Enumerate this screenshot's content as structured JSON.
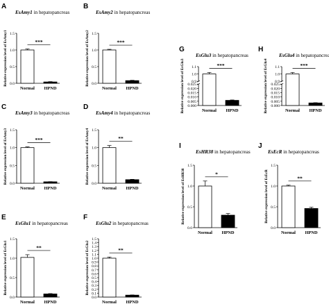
{
  "chart_data": [
    {
      "panel": "A",
      "type": "bar",
      "gene": "EsAmy1",
      "title_suffix": " in hepatopancreas",
      "ylabel": "Relative expression level of EsAmy1",
      "categories": [
        "Normal",
        "HPND"
      ],
      "values": [
        1.0,
        0.04
      ],
      "errors": [
        0.03,
        0.01
      ],
      "ylim": [
        0,
        1.5
      ],
      "yticks": [
        0.0,
        0.5,
        1.0,
        1.5
      ],
      "ytick_labels": [
        "0.0",
        "0.5",
        "1.0",
        "1.5"
      ],
      "significance": "***"
    },
    {
      "panel": "B",
      "type": "bar",
      "gene": "EsAmy2",
      "title_suffix": " in hepatopancreas",
      "ylabel": "Relative expression level of EsAmy2",
      "categories": [
        "Normal",
        "HPND"
      ],
      "values": [
        1.0,
        0.08
      ],
      "errors": [
        0.02,
        0.01
      ],
      "ylim": [
        0,
        1.5
      ],
      "yticks": [
        0.0,
        0.5,
        1.0,
        1.5
      ],
      "ytick_labels": [
        "0.0",
        "0.5",
        "1.0",
        "1.5"
      ],
      "significance": "***"
    },
    {
      "panel": "C",
      "type": "bar",
      "gene": "EsAmy3",
      "title_suffix": " in hepatopancreas",
      "ylabel": "Relative expression level of EsAmy3",
      "categories": [
        "Normal",
        "HPND"
      ],
      "values": [
        1.0,
        0.04
      ],
      "errors": [
        0.02,
        0.005
      ],
      "ylim": [
        0,
        1.5
      ],
      "yticks": [
        0.0,
        0.5,
        1.0,
        1.5
      ],
      "ytick_labels": [
        "0.0",
        "0.5",
        "1.0",
        "1.5"
      ],
      "significance": "***"
    },
    {
      "panel": "D",
      "type": "bar",
      "gene": "EsAmy4",
      "title_suffix": " in hepatopancreas",
      "ylabel": "Relative expression level of EsAmy4",
      "categories": [
        "Normal",
        "HPND"
      ],
      "values": [
        1.0,
        0.1
      ],
      "errors": [
        0.06,
        0.01
      ],
      "ylim": [
        0,
        1.5
      ],
      "yticks": [
        0.0,
        0.5,
        1.0,
        1.5
      ],
      "ytick_labels": [
        "0.0",
        "0.5",
        "1.0",
        "1.5"
      ],
      "significance": "**"
    },
    {
      "panel": "E",
      "type": "bar",
      "gene": "EsGlu1",
      "title_suffix": " in hepatopancreas",
      "ylabel": "Relative expression level of EsGlu1",
      "categories": [
        "Normal",
        "HPND"
      ],
      "values": [
        1.02,
        0.08
      ],
      "errors": [
        0.07,
        0.01
      ],
      "ylim": [
        0,
        1.5
      ],
      "yticks": [
        0.0,
        0.5,
        1.0,
        1.5
      ],
      "ytick_labels": [
        "0.0",
        "0.5",
        "1.0",
        "1.5"
      ],
      "significance": "**"
    },
    {
      "panel": "F",
      "type": "bar",
      "gene": "EsGlu2",
      "title_suffix": " in hepatopancreas",
      "ylabel": "Relative expression level of EsGlu2",
      "categories": [
        "Normal",
        "HPND"
      ],
      "values": [
        1.0,
        0.05
      ],
      "errors": [
        0.03,
        0.005
      ],
      "ylim": [
        0,
        1.5
      ],
      "yticks": [
        0.0,
        0.1,
        0.2,
        0.3,
        0.4,
        0.5,
        0.6,
        0.7,
        0.8,
        0.9,
        1.0,
        1.1,
        1.2,
        1.3,
        1.4,
        1.5
      ],
      "ytick_labels": [
        "0.0",
        "0.1",
        "0.2",
        "0.3",
        "0.4",
        "0.5",
        "0.6",
        "0.7",
        "0.8",
        "0.9",
        "1.0",
        "1.1",
        "1.2",
        "1.3",
        "1.4",
        "1.5"
      ],
      "significance": "**"
    },
    {
      "panel": "G",
      "type": "bar",
      "gene": "EsGlu3",
      "title_suffix": " in hepatopancreas",
      "ylabel": "Relative expression level of EsGlu3",
      "categories": [
        "Normal",
        "HPND"
      ],
      "values": [
        1.0,
        0.006
      ],
      "errors": [
        0.02,
        0.0005
      ],
      "ylim": [
        0,
        1.1
      ],
      "yticks": [
        0.0,
        0.005,
        0.01,
        0.015,
        0.02,
        0.025,
        0.9,
        1.0,
        1.1
      ],
      "ytick_labels": [
        "0.000",
        "0.005",
        "0.010",
        "0.015",
        "0.020",
        "0.025",
        "0.9",
        "1.0",
        "1.1"
      ],
      "axis_break": {
        "lower": [
          0,
          0.025
        ],
        "upper": [
          0.9,
          1.1
        ]
      },
      "significance": "***"
    },
    {
      "panel": "H",
      "type": "bar",
      "gene": "EsGlu4",
      "title_suffix": " in hepatopancreas",
      "ylabel": "Relative expression level of EsGlu4",
      "categories": [
        "Normal",
        "HPND"
      ],
      "values": [
        1.0,
        0.003
      ],
      "errors": [
        0.02,
        0.0003
      ],
      "ylim": [
        0,
        1.1
      ],
      "yticks": [
        0.0,
        0.005,
        0.01,
        0.015,
        0.02,
        0.025,
        0.9,
        1.0,
        1.1
      ],
      "ytick_labels": [
        "0.000",
        "0.005",
        "0.010",
        "0.015",
        "0.020",
        "0.025",
        "0.9",
        "1.0",
        "1.1"
      ],
      "axis_break": {
        "lower": [
          0,
          0.025
        ],
        "upper": [
          0.9,
          1.1
        ]
      },
      "significance": "***"
    },
    {
      "panel": "I",
      "type": "bar",
      "gene": "EsHR38",
      "title_suffix": " in hepatopancreas",
      "ylabel": "Relative expression level of EsHR38",
      "categories": [
        "Normal",
        "HPND"
      ],
      "values": [
        1.0,
        0.3
      ],
      "errors": [
        0.12,
        0.04
      ],
      "ylim": [
        0,
        1.5
      ],
      "yticks": [
        0.0,
        0.5,
        1.0,
        1.5
      ],
      "ytick_labels": [
        "0.0",
        "0.5",
        "1.0",
        "1.5"
      ],
      "significance": "*"
    },
    {
      "panel": "J",
      "type": "bar",
      "gene": "EsEcR",
      "title_suffix": " in hepatopancreas",
      "ylabel": "Relative expression level of EsEcR",
      "categories": [
        "Normal",
        "HPND"
      ],
      "values": [
        1.0,
        0.46
      ],
      "errors": [
        0.02,
        0.03
      ],
      "ylim": [
        0,
        1.5
      ],
      "yticks": [
        0.0,
        0.5,
        1.0,
        1.5
      ],
      "ytick_labels": [
        "0.0",
        "0.5",
        "1.0",
        "1.5"
      ],
      "significance": "**"
    }
  ],
  "style": {
    "normal_fill": "#ffffff",
    "hpnd_fill": "#000000",
    "axis_color": "#000000",
    "background": "#ffffff"
  }
}
